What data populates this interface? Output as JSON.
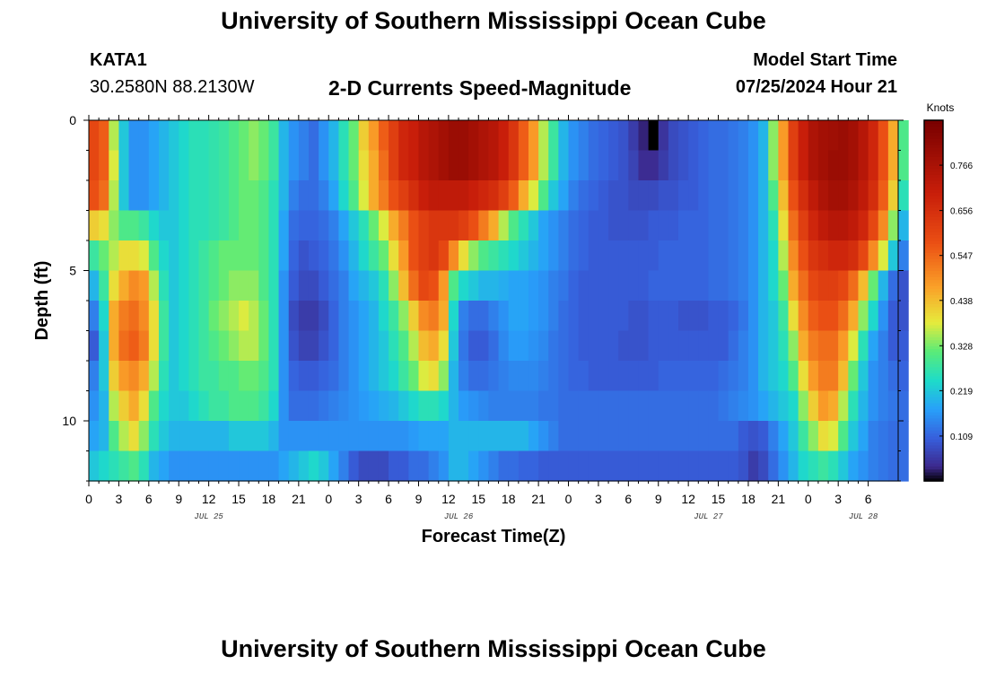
{
  "page": {
    "title": "University of Southern Mississippi Ocean Cube",
    "station": "KATA1",
    "coords": "30.2580N  88.2130W",
    "model_start_label": "Model Start Time",
    "model_start_value": "07/25/2024 Hour 21",
    "footer_title": "University of Southern Mississippi Ocean Cube"
  },
  "chart_data": {
    "type": "heatmap",
    "title": "2-D Currents Speed-Magnitude",
    "xlabel": "Forecast Time(Z)",
    "ylabel": "Depth (ft)",
    "colorbar_label": "Knots",
    "colorbar_ticks": [
      "0.109",
      "0.219",
      "0.328",
      "0.438",
      "0.547",
      "0.656",
      "0.766"
    ],
    "colorbar_range": [
      0,
      0.875
    ],
    "x_hours_range": [
      0,
      81
    ],
    "x_tick_labels": [
      "0",
      "3",
      "6",
      "9",
      "12",
      "15",
      "18",
      "21",
      "0",
      "3",
      "6",
      "9",
      "12",
      "15",
      "18",
      "21",
      "0",
      "3",
      "6",
      "9",
      "12",
      "15",
      "18",
      "21",
      "0",
      "3",
      "6"
    ],
    "date_labels": [
      {
        "text": "JUL 25",
        "hour": 12
      },
      {
        "text": "JUL 26",
        "hour": 37
      },
      {
        "text": "JUL 27",
        "hour": 62
      },
      {
        "text": "JUL 28",
        "hour": 77.5
      }
    ],
    "y_range": [
      0,
      12
    ],
    "y_tick_labels": [
      {
        "text": "0",
        "depth": 0
      },
      {
        "text": "5",
        "depth": 5
      },
      {
        "text": "10",
        "depth": 10
      }
    ],
    "depth_rows": 12,
    "time_step_hours": 1,
    "speed_grid": [
      [
        0.6,
        0.56,
        0.36,
        0.22,
        0.16,
        0.16,
        0.18,
        0.2,
        0.22,
        0.24,
        0.26,
        0.26,
        0.27,
        0.28,
        0.3,
        0.32,
        0.34,
        0.32,
        0.28,
        0.2,
        0.16,
        0.14,
        0.12,
        0.16,
        0.2,
        0.26,
        0.32,
        0.42,
        0.48,
        0.56,
        0.62,
        0.68,
        0.7,
        0.74,
        0.76,
        0.78,
        0.8,
        0.8,
        0.78,
        0.76,
        0.74,
        0.7,
        0.64,
        0.56,
        0.48,
        0.36,
        0.28,
        0.2,
        0.16,
        0.14,
        0.12,
        0.11,
        0.1,
        0.09,
        0.06,
        0.03,
        0.0,
        0.05,
        0.08,
        0.09,
        0.1,
        0.11,
        0.12,
        0.12,
        0.13,
        0.14,
        0.16,
        0.2,
        0.34,
        0.48,
        0.62,
        0.7,
        0.76,
        0.78,
        0.79,
        0.8,
        0.78,
        0.74,
        0.68,
        0.58,
        0.46,
        0.3
      ],
      [
        0.6,
        0.56,
        0.38,
        0.22,
        0.16,
        0.16,
        0.18,
        0.2,
        0.22,
        0.24,
        0.26,
        0.26,
        0.27,
        0.28,
        0.3,
        0.32,
        0.34,
        0.32,
        0.28,
        0.2,
        0.16,
        0.14,
        0.12,
        0.16,
        0.2,
        0.26,
        0.32,
        0.4,
        0.46,
        0.54,
        0.62,
        0.68,
        0.7,
        0.74,
        0.76,
        0.78,
        0.8,
        0.8,
        0.78,
        0.76,
        0.74,
        0.7,
        0.64,
        0.56,
        0.48,
        0.36,
        0.28,
        0.2,
        0.16,
        0.14,
        0.12,
        0.11,
        0.1,
        0.09,
        0.07,
        0.04,
        0.04,
        0.06,
        0.08,
        0.09,
        0.1,
        0.11,
        0.12,
        0.12,
        0.13,
        0.14,
        0.16,
        0.2,
        0.34,
        0.48,
        0.62,
        0.7,
        0.76,
        0.78,
        0.8,
        0.8,
        0.78,
        0.74,
        0.68,
        0.58,
        0.46,
        0.3
      ],
      [
        0.58,
        0.54,
        0.36,
        0.22,
        0.16,
        0.16,
        0.18,
        0.2,
        0.22,
        0.24,
        0.26,
        0.26,
        0.27,
        0.28,
        0.3,
        0.32,
        0.32,
        0.3,
        0.26,
        0.2,
        0.14,
        0.12,
        0.12,
        0.14,
        0.18,
        0.24,
        0.3,
        0.38,
        0.46,
        0.52,
        0.58,
        0.62,
        0.66,
        0.7,
        0.72,
        0.72,
        0.72,
        0.72,
        0.7,
        0.68,
        0.66,
        0.62,
        0.56,
        0.46,
        0.38,
        0.3,
        0.22,
        0.18,
        0.14,
        0.12,
        0.11,
        0.1,
        0.09,
        0.09,
        0.08,
        0.08,
        0.08,
        0.09,
        0.09,
        0.1,
        0.1,
        0.11,
        0.12,
        0.12,
        0.13,
        0.14,
        0.16,
        0.2,
        0.3,
        0.44,
        0.58,
        0.66,
        0.72,
        0.76,
        0.78,
        0.78,
        0.76,
        0.72,
        0.66,
        0.56,
        0.42,
        0.26
      ],
      [
        0.42,
        0.4,
        0.34,
        0.3,
        0.3,
        0.28,
        0.24,
        0.22,
        0.22,
        0.24,
        0.26,
        0.26,
        0.27,
        0.28,
        0.3,
        0.32,
        0.32,
        0.3,
        0.26,
        0.18,
        0.12,
        0.11,
        0.11,
        0.12,
        0.14,
        0.18,
        0.22,
        0.26,
        0.32,
        0.38,
        0.46,
        0.52,
        0.58,
        0.62,
        0.64,
        0.64,
        0.64,
        0.62,
        0.58,
        0.52,
        0.46,
        0.36,
        0.3,
        0.26,
        0.22,
        0.18,
        0.16,
        0.14,
        0.12,
        0.11,
        0.1,
        0.1,
        0.09,
        0.09,
        0.09,
        0.09,
        0.1,
        0.1,
        0.1,
        0.11,
        0.11,
        0.11,
        0.12,
        0.12,
        0.13,
        0.14,
        0.16,
        0.2,
        0.26,
        0.4,
        0.54,
        0.62,
        0.68,
        0.72,
        0.74,
        0.74,
        0.72,
        0.68,
        0.6,
        0.5,
        0.34,
        0.2
      ],
      [
        0.28,
        0.32,
        0.36,
        0.4,
        0.4,
        0.38,
        0.3,
        0.24,
        0.22,
        0.24,
        0.26,
        0.28,
        0.3,
        0.32,
        0.32,
        0.32,
        0.32,
        0.3,
        0.26,
        0.18,
        0.11,
        0.09,
        0.1,
        0.11,
        0.13,
        0.16,
        0.2,
        0.24,
        0.28,
        0.32,
        0.4,
        0.48,
        0.58,
        0.62,
        0.64,
        0.6,
        0.5,
        0.4,
        0.34,
        0.3,
        0.28,
        0.26,
        0.24,
        0.22,
        0.2,
        0.18,
        0.16,
        0.14,
        0.12,
        0.11,
        0.1,
        0.1,
        0.1,
        0.1,
        0.1,
        0.1,
        0.1,
        0.11,
        0.11,
        0.11,
        0.11,
        0.11,
        0.12,
        0.12,
        0.13,
        0.14,
        0.16,
        0.2,
        0.24,
        0.36,
        0.5,
        0.58,
        0.64,
        0.66,
        0.68,
        0.68,
        0.66,
        0.6,
        0.5,
        0.38,
        0.22,
        0.14
      ],
      [
        0.2,
        0.28,
        0.4,
        0.46,
        0.5,
        0.48,
        0.36,
        0.26,
        0.22,
        0.24,
        0.26,
        0.28,
        0.3,
        0.32,
        0.34,
        0.34,
        0.34,
        0.3,
        0.26,
        0.16,
        0.1,
        0.08,
        0.08,
        0.1,
        0.12,
        0.14,
        0.18,
        0.2,
        0.22,
        0.26,
        0.34,
        0.44,
        0.54,
        0.6,
        0.58,
        0.48,
        0.3,
        0.24,
        0.22,
        0.2,
        0.2,
        0.19,
        0.18,
        0.18,
        0.17,
        0.16,
        0.14,
        0.13,
        0.11,
        0.1,
        0.1,
        0.1,
        0.1,
        0.1,
        0.1,
        0.1,
        0.11,
        0.11,
        0.11,
        0.11,
        0.11,
        0.11,
        0.12,
        0.12,
        0.13,
        0.14,
        0.16,
        0.2,
        0.24,
        0.32,
        0.46,
        0.54,
        0.6,
        0.62,
        0.62,
        0.6,
        0.54,
        0.44,
        0.32,
        0.2,
        0.12,
        0.09
      ],
      [
        0.14,
        0.24,
        0.46,
        0.52,
        0.54,
        0.5,
        0.4,
        0.28,
        0.22,
        0.24,
        0.26,
        0.28,
        0.32,
        0.34,
        0.36,
        0.38,
        0.36,
        0.32,
        0.26,
        0.16,
        0.08,
        0.06,
        0.06,
        0.08,
        0.11,
        0.14,
        0.16,
        0.18,
        0.2,
        0.24,
        0.28,
        0.34,
        0.42,
        0.5,
        0.52,
        0.46,
        0.24,
        0.14,
        0.12,
        0.12,
        0.14,
        0.16,
        0.18,
        0.18,
        0.17,
        0.16,
        0.14,
        0.12,
        0.11,
        0.1,
        0.1,
        0.1,
        0.1,
        0.1,
        0.09,
        0.09,
        0.1,
        0.1,
        0.1,
        0.09,
        0.09,
        0.09,
        0.1,
        0.1,
        0.11,
        0.13,
        0.16,
        0.2,
        0.22,
        0.28,
        0.4,
        0.5,
        0.56,
        0.58,
        0.58,
        0.54,
        0.46,
        0.34,
        0.24,
        0.16,
        0.1,
        0.09
      ],
      [
        0.1,
        0.22,
        0.46,
        0.54,
        0.56,
        0.52,
        0.4,
        0.28,
        0.22,
        0.24,
        0.26,
        0.28,
        0.3,
        0.32,
        0.34,
        0.36,
        0.36,
        0.32,
        0.26,
        0.16,
        0.09,
        0.07,
        0.07,
        0.09,
        0.11,
        0.14,
        0.16,
        0.18,
        0.2,
        0.22,
        0.26,
        0.3,
        0.36,
        0.44,
        0.46,
        0.4,
        0.22,
        0.13,
        0.1,
        0.1,
        0.12,
        0.15,
        0.17,
        0.17,
        0.16,
        0.15,
        0.13,
        0.12,
        0.11,
        0.1,
        0.1,
        0.1,
        0.1,
        0.09,
        0.09,
        0.09,
        0.1,
        0.1,
        0.1,
        0.1,
        0.1,
        0.1,
        0.1,
        0.1,
        0.12,
        0.14,
        0.16,
        0.2,
        0.22,
        0.26,
        0.34,
        0.46,
        0.52,
        0.54,
        0.54,
        0.48,
        0.38,
        0.26,
        0.18,
        0.14,
        0.1,
        0.1
      ],
      [
        0.14,
        0.22,
        0.42,
        0.48,
        0.5,
        0.46,
        0.36,
        0.26,
        0.22,
        0.24,
        0.26,
        0.28,
        0.28,
        0.3,
        0.3,
        0.32,
        0.32,
        0.3,
        0.26,
        0.16,
        0.11,
        0.1,
        0.1,
        0.11,
        0.12,
        0.14,
        0.16,
        0.18,
        0.2,
        0.22,
        0.24,
        0.28,
        0.32,
        0.38,
        0.4,
        0.34,
        0.2,
        0.14,
        0.12,
        0.12,
        0.13,
        0.14,
        0.15,
        0.15,
        0.15,
        0.14,
        0.13,
        0.12,
        0.11,
        0.11,
        0.1,
        0.1,
        0.1,
        0.1,
        0.1,
        0.1,
        0.1,
        0.11,
        0.11,
        0.11,
        0.11,
        0.11,
        0.11,
        0.12,
        0.13,
        0.14,
        0.16,
        0.2,
        0.22,
        0.24,
        0.3,
        0.4,
        0.48,
        0.52,
        0.52,
        0.44,
        0.32,
        0.22,
        0.16,
        0.14,
        0.12,
        0.11
      ],
      [
        0.16,
        0.2,
        0.36,
        0.42,
        0.46,
        0.4,
        0.3,
        0.24,
        0.22,
        0.22,
        0.24,
        0.26,
        0.28,
        0.28,
        0.3,
        0.3,
        0.3,
        0.28,
        0.24,
        0.16,
        0.12,
        0.12,
        0.12,
        0.13,
        0.14,
        0.15,
        0.16,
        0.17,
        0.18,
        0.19,
        0.2,
        0.22,
        0.24,
        0.26,
        0.26,
        0.24,
        0.2,
        0.17,
        0.16,
        0.15,
        0.14,
        0.14,
        0.14,
        0.14,
        0.14,
        0.13,
        0.13,
        0.12,
        0.12,
        0.12,
        0.12,
        0.12,
        0.12,
        0.12,
        0.12,
        0.12,
        0.12,
        0.12,
        0.12,
        0.12,
        0.12,
        0.12,
        0.12,
        0.13,
        0.14,
        0.15,
        0.16,
        0.18,
        0.2,
        0.22,
        0.24,
        0.34,
        0.42,
        0.48,
        0.46,
        0.36,
        0.26,
        0.2,
        0.16,
        0.14,
        0.13,
        0.12
      ],
      [
        0.18,
        0.2,
        0.3,
        0.36,
        0.4,
        0.34,
        0.26,
        0.22,
        0.2,
        0.2,
        0.2,
        0.2,
        0.2,
        0.2,
        0.22,
        0.22,
        0.22,
        0.22,
        0.2,
        0.16,
        0.16,
        0.16,
        0.16,
        0.16,
        0.16,
        0.16,
        0.16,
        0.16,
        0.16,
        0.16,
        0.16,
        0.16,
        0.17,
        0.18,
        0.18,
        0.18,
        0.2,
        0.2,
        0.2,
        0.2,
        0.2,
        0.2,
        0.2,
        0.2,
        0.18,
        0.16,
        0.14,
        0.12,
        0.12,
        0.12,
        0.12,
        0.12,
        0.12,
        0.12,
        0.12,
        0.12,
        0.12,
        0.12,
        0.12,
        0.12,
        0.12,
        0.12,
        0.12,
        0.12,
        0.12,
        0.1,
        0.09,
        0.1,
        0.14,
        0.18,
        0.22,
        0.28,
        0.34,
        0.4,
        0.38,
        0.3,
        0.22,
        0.18,
        0.14,
        0.13,
        0.12,
        0.12
      ],
      [
        0.22,
        0.24,
        0.26,
        0.28,
        0.3,
        0.26,
        0.2,
        0.18,
        0.16,
        0.16,
        0.16,
        0.16,
        0.16,
        0.16,
        0.16,
        0.16,
        0.16,
        0.16,
        0.16,
        0.18,
        0.2,
        0.22,
        0.24,
        0.22,
        0.18,
        0.14,
        0.1,
        0.08,
        0.08,
        0.08,
        0.1,
        0.1,
        0.12,
        0.12,
        0.14,
        0.16,
        0.2,
        0.2,
        0.18,
        0.16,
        0.14,
        0.12,
        0.12,
        0.11,
        0.11,
        0.1,
        0.1,
        0.1,
        0.1,
        0.1,
        0.1,
        0.1,
        0.1,
        0.1,
        0.1,
        0.1,
        0.1,
        0.1,
        0.1,
        0.1,
        0.1,
        0.1,
        0.1,
        0.1,
        0.1,
        0.09,
        0.06,
        0.08,
        0.12,
        0.16,
        0.2,
        0.24,
        0.26,
        0.28,
        0.26,
        0.22,
        0.18,
        0.16,
        0.14,
        0.13,
        0.12,
        0.12
      ]
    ]
  }
}
